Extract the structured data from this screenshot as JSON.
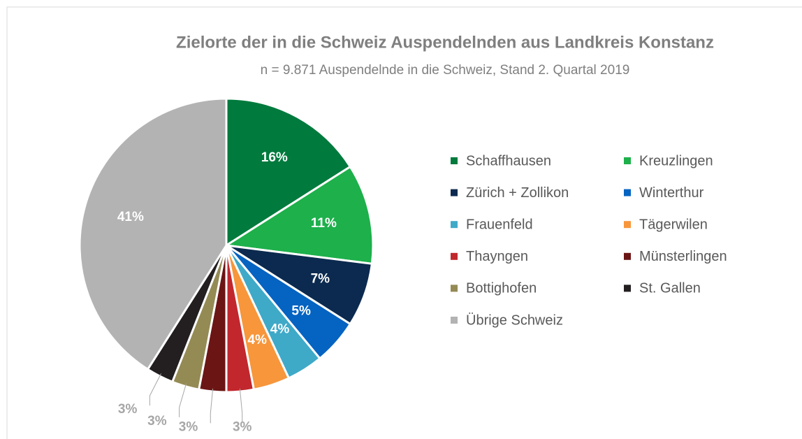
{
  "chart_data": {
    "type": "pie",
    "title": "Zielorte der in die Schweiz Auspendelnden aus Landkreis Konstanz",
    "subtitle": "n = 9.871 Auspendelnde in die Schweiz, Stand 2. Quartal 2019",
    "categories": [
      "Schaffhausen",
      "Kreuzlingen",
      "Zürich + Zollikon",
      "Winterthur",
      "Frauenfeld",
      "Tägerwilen",
      "Thayngen",
      "Münsterlingen",
      "Bottighofen",
      "St. Gallen",
      "Übrige Schweiz"
    ],
    "values": [
      16,
      11,
      7,
      5,
      4,
      4,
      3,
      3,
      3,
      3,
      41
    ],
    "value_labels": [
      "16%",
      "11%",
      "7%",
      "5%",
      "4%",
      "4%",
      "3%",
      "3%",
      "3%",
      "3%",
      "41%"
    ],
    "colors": [
      "#007a3d",
      "#1db04b",
      "#0c2a4f",
      "#0563c1",
      "#3fa9c8",
      "#f7963b",
      "#c1272d",
      "#6b1515",
      "#948a54",
      "#231f20",
      "#b3b3b3"
    ],
    "legend": "right"
  }
}
